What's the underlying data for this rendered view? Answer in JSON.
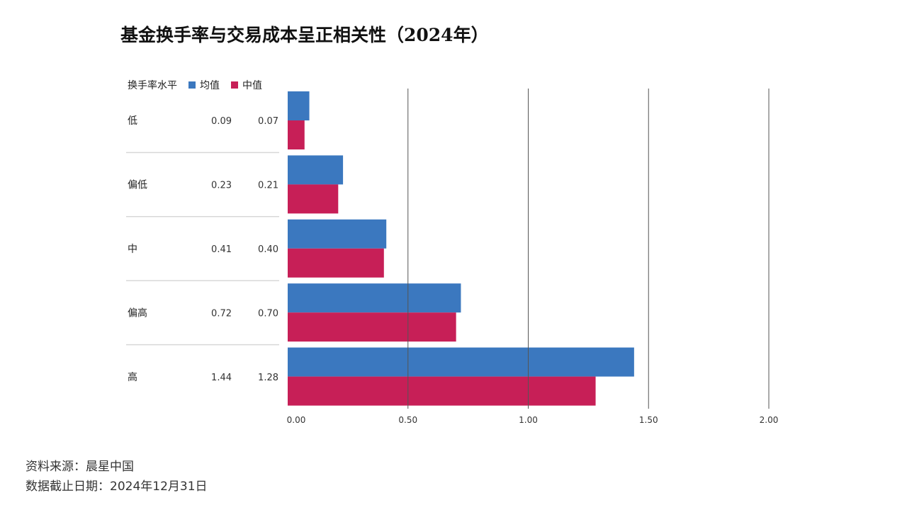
{
  "title": "基金换手率与交易成本呈正相关性（2024年）",
  "chart_data": {
    "type": "bar",
    "orientation": "horizontal",
    "category_header": "换手率水平",
    "categories": [
      "低",
      "偏低",
      "中",
      "偏高",
      "高"
    ],
    "series": [
      {
        "name": "均值",
        "color": "#3b78bf",
        "values": [
          0.09,
          0.23,
          0.41,
          0.72,
          1.44
        ],
        "labels": [
          "0.09",
          "0.23",
          "0.41",
          "0.72",
          "1.44"
        ]
      },
      {
        "name": "中值",
        "color": "#c71f57",
        "values": [
          0.07,
          0.21,
          0.4,
          0.7,
          1.28
        ],
        "labels": [
          "0.07",
          "0.21",
          "0.40",
          "0.70",
          "1.28"
        ]
      }
    ],
    "xlim": [
      0,
      2
    ],
    "xticks": [
      0,
      0.5,
      1,
      1.5,
      2
    ],
    "xtick_labels": [
      "0.00",
      "0.50",
      "1.00",
      "1.50",
      "2.00"
    ],
    "grid": true,
    "legend_position": "top-left"
  },
  "footer": {
    "source": "资料来源：晨星中国",
    "date": "数据截止日期：2024年12月31日"
  }
}
